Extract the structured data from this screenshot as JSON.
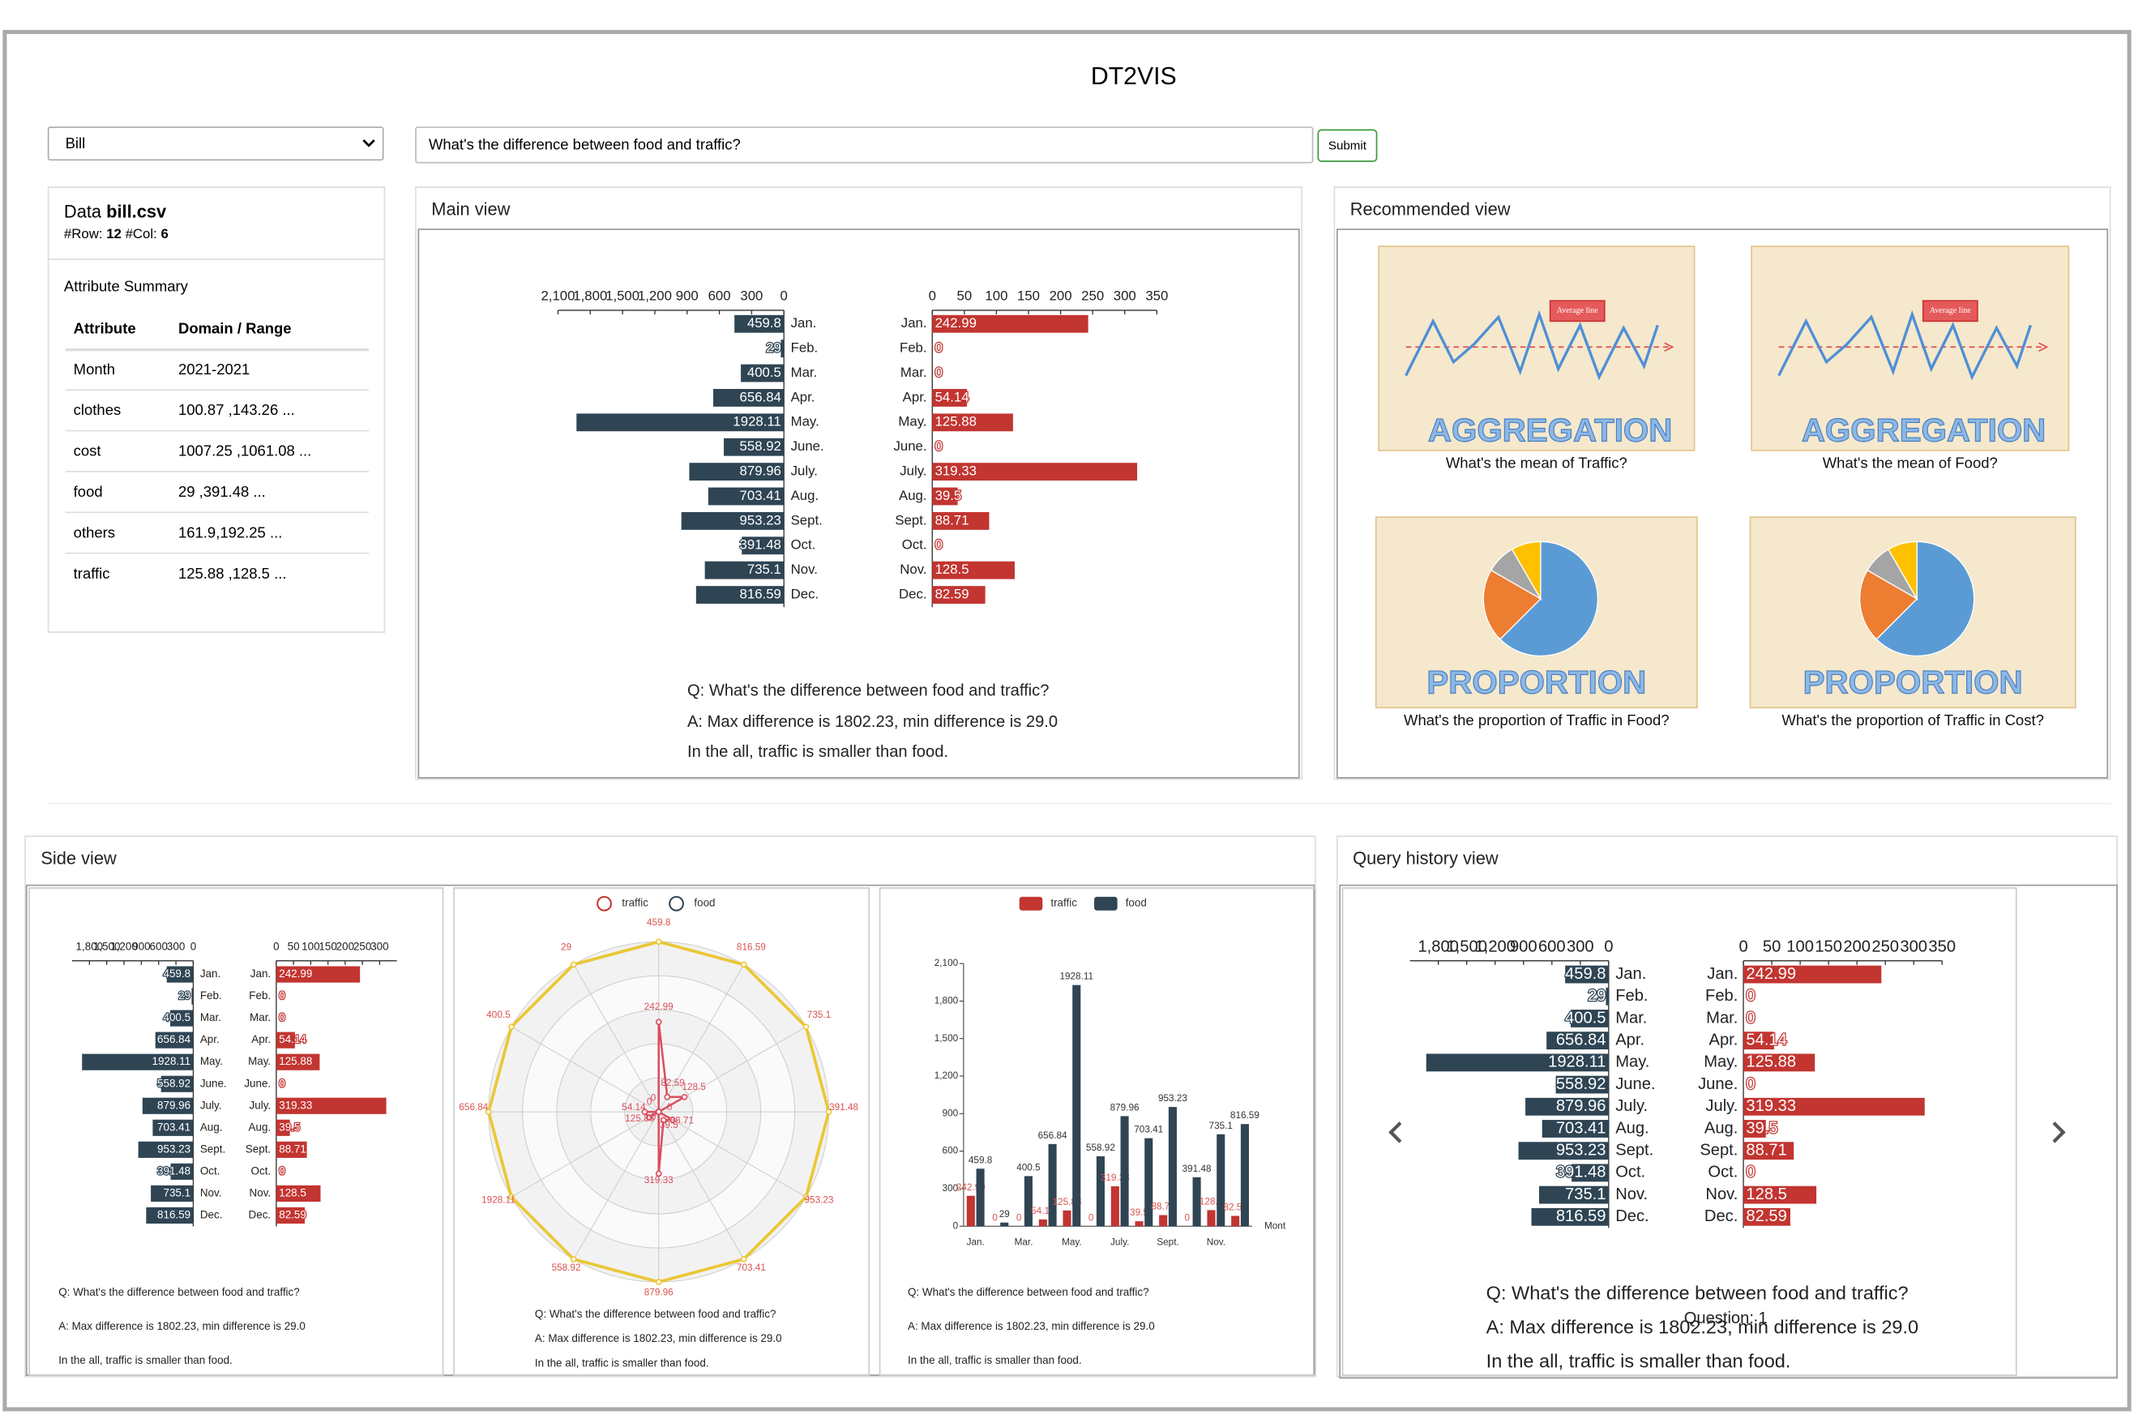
{
  "header": {
    "title": "DT2VIS"
  },
  "controls": {
    "dataset": "Bill",
    "query": "What's the difference between food and traffic?",
    "submit": "Submit"
  },
  "data_panel": {
    "label": "Data",
    "file": "bill.csv",
    "row_label": "#Row:",
    "row_count": 12,
    "col_label": "#Col:",
    "col_count": 6,
    "summary_title": "Attribute Summary",
    "columns": [
      "Attribute",
      "Domain / Range"
    ],
    "rows": [
      [
        "Month",
        "2021-2021"
      ],
      [
        "clothes",
        "100.87 ,143.26 ..."
      ],
      [
        "cost",
        "1007.25 ,1061.08 ..."
      ],
      [
        "food",
        "29 ,391.48 ..."
      ],
      [
        "others",
        "161.9,192.25 ..."
      ],
      [
        "traffic",
        "125.88 ,128.5 ..."
      ]
    ]
  },
  "dataset": {
    "categories": [
      "Jan.",
      "Feb.",
      "Mar.",
      "Apr.",
      "May.",
      "June.",
      "July.",
      "Aug.",
      "Sept.",
      "Oct.",
      "Nov.",
      "Dec."
    ],
    "series": [
      {
        "name": "traffic",
        "color": "#c23531",
        "values": [
          242.99,
          0,
          0,
          54.14,
          125.88,
          0,
          319.33,
          39.5,
          88.71,
          0,
          128.5,
          82.59
        ]
      },
      {
        "name": "food",
        "color": "#2f4554",
        "values": [
          459.8,
          29,
          400.5,
          656.84,
          1928.11,
          558.92,
          879.96,
          703.41,
          953.23,
          391.48,
          735.1,
          816.59
        ]
      }
    ]
  },
  "answer": {
    "lines": [
      "Q: What's the difference between food and traffic?",
      "A: Max difference is 1802.23, min difference is 29.0",
      "In the all, traffic is smaller than food."
    ]
  },
  "main_view": {
    "title": "Main view",
    "chart": {
      "type": "butterfly",
      "xlim_left": [
        0,
        2100
      ],
      "xticks_left": [
        {
          "value": 2100,
          "label": "2,100"
        },
        {
          "value": 1800,
          "label": "1,800"
        },
        {
          "value": 1500,
          "label": "1,500"
        },
        {
          "value": 1200,
          "label": "1,200"
        },
        900,
        600,
        300,
        0
      ],
      "xlim_right": [
        0,
        350
      ],
      "xticks_right": [
        0,
        50,
        100,
        150,
        200,
        250,
        300,
        350
      ]
    }
  },
  "recommended_view": {
    "title": "Recommended view",
    "cards": [
      {
        "badge": "AGGREGATION",
        "flag": "Average line",
        "caption": "What's the mean of Traffic?"
      },
      {
        "badge": "AGGREGATION",
        "flag": "Average line",
        "caption": "What's the mean of Food?"
      },
      {
        "badge": "PROPORTION",
        "caption": "What's the proportion of Traffic in Food?"
      },
      {
        "badge": "PROPORTION",
        "caption": "What's the proportion of Traffic in Cost?"
      }
    ]
  },
  "side_view": {
    "title": "Side view",
    "charts": [
      {
        "type": "butterfly",
        "xlim_left": [
          0,
          2100
        ],
        "xticks_left": [
          {
            "value": 1800,
            "label": "1,800"
          },
          {
            "value": 1500,
            "label": "1,500"
          },
          {
            "value": 1200,
            "label": "1,200"
          },
          900,
          600,
          300,
          0
        ],
        "xlim_right": [
          0,
          350
        ],
        "xticks_right": [
          0,
          50,
          100,
          150,
          200,
          250,
          300
        ]
      },
      {
        "type": "radar",
        "polygon_colors": [
          "#d94e5d",
          "#eac736"
        ]
      },
      {
        "type": "bar",
        "ylim": [
          0,
          2100
        ],
        "yticks": [
          0,
          300,
          600,
          900,
          {
            "value": 1200,
            "label": "1,200"
          },
          {
            "value": 1500,
            "label": "1,500"
          },
          {
            "value": 1800,
            "label": "1,800"
          },
          {
            "value": 2100,
            "label": "2,100"
          }
        ],
        "x_name": "Mont"
      }
    ]
  },
  "history_view": {
    "title": "Query history view",
    "question_label": "Question: 1",
    "chart": {
      "type": "butterfly",
      "xlim_left": [
        0,
        2100
      ],
      "xticks_left": [
        {
          "value": 1800,
          "label": "1,800"
        },
        {
          "value": 1500,
          "label": "1,500"
        },
        {
          "value": 1200,
          "label": "1,200"
        },
        900,
        600,
        300,
        0
      ],
      "xlim_right": [
        0,
        350
      ],
      "xticks_right": [
        0,
        50,
        100,
        150,
        200,
        250,
        300,
        350
      ]
    }
  }
}
